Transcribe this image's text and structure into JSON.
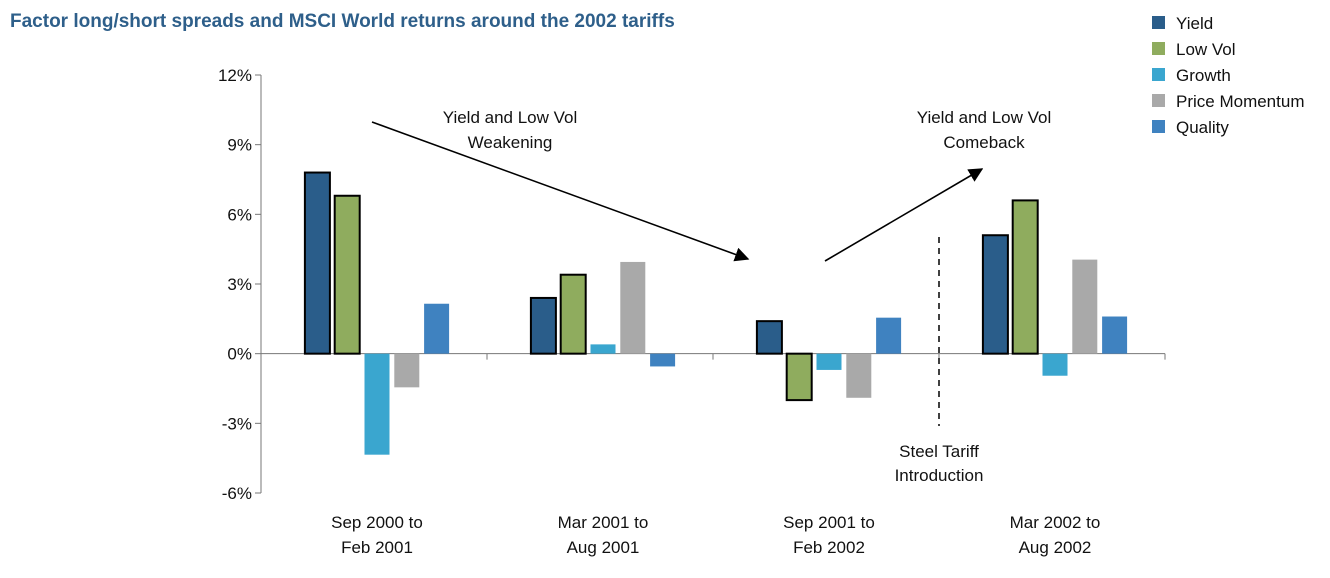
{
  "chart_data": {
    "type": "bar",
    "title": "Factor long/short spreads and MSCI World returns around the 2002 tariffs",
    "xlabel": "",
    "ylabel": "",
    "ylim": [
      -6,
      12
    ],
    "yticks": [
      12,
      9,
      6,
      3,
      0,
      -3,
      -6
    ],
    "ytick_labels": [
      "12%",
      "9%",
      "6%",
      "3%",
      "0%",
      "-3%",
      "-6%"
    ],
    "categories": [
      [
        "Sep 2000 to",
        "Feb 2001"
      ],
      [
        "Mar 2001 to",
        "Aug 2001"
      ],
      [
        "Sep 2001 to",
        "Feb 2002"
      ],
      [
        "Mar 2002 to",
        "Aug 2002"
      ]
    ],
    "series": [
      {
        "name": "Yield",
        "color": "#2a5d8a",
        "outlined": true,
        "values": [
          7.8,
          2.4,
          1.4,
          5.1
        ]
      },
      {
        "name": "Low Vol",
        "color": "#8fac5e",
        "outlined": true,
        "values": [
          6.8,
          3.4,
          -2.0,
          6.6
        ]
      },
      {
        "name": "Growth",
        "color": "#3aa6cf",
        "outlined": false,
        "values": [
          -4.35,
          0.4,
          -0.7,
          -0.95
        ]
      },
      {
        "name": "Price Momentum",
        "color": "#a9a9a9",
        "outlined": false,
        "values": [
          -1.45,
          3.95,
          -1.9,
          4.05
        ]
      },
      {
        "name": "Quality",
        "color": "#3f82c0",
        "outlined": false,
        "values": [
          2.15,
          -0.55,
          1.55,
          1.6
        ]
      }
    ],
    "legend_position": "top-right",
    "annotations": [
      {
        "name": "weakening",
        "lines": [
          "Yield and Low Vol",
          "Weakening"
        ]
      },
      {
        "name": "comeback",
        "lines": [
          "Yield and Low Vol",
          "Comeback"
        ]
      },
      {
        "name": "steel-tariff",
        "lines": [
          "Steel Tariff",
          "Introduction"
        ]
      }
    ]
  }
}
